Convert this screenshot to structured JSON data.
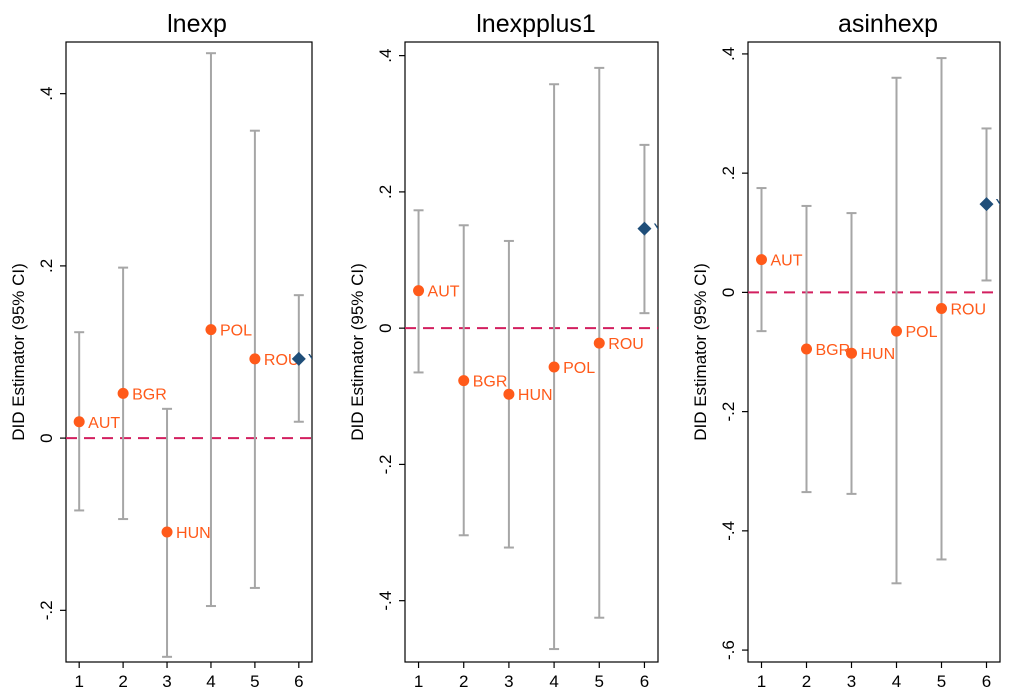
{
  "colors": {
    "ci": "#a6a6a6",
    "point": "#ff5a1a",
    "highlight": "#1f4e79",
    "zero_line": "#d21f5f",
    "axis": "#000000"
  },
  "chart_data": [
    {
      "type": "scatter",
      "title": "lnexp",
      "ylabel": "DID Estimator (95% CI)",
      "xlim": [
        0.7,
        6.3
      ],
      "ylim": [
        -0.26,
        0.46
      ],
      "xticks": [
        1,
        2,
        3,
        4,
        5,
        6
      ],
      "yticks": [
        -0.2,
        0,
        0.2,
        0.4
      ],
      "ytick_labels": [
        "-.2",
        "0",
        ".2",
        ".4"
      ],
      "reference_line": 0,
      "grid": false,
      "points": [
        {
          "x": 1,
          "label": "AUT",
          "estimate": 0.019,
          "ci_low": -0.084,
          "ci_high": 0.123,
          "highlight": false
        },
        {
          "x": 2,
          "label": "BGR",
          "estimate": 0.052,
          "ci_low": -0.094,
          "ci_high": 0.198,
          "highlight": false
        },
        {
          "x": 3,
          "label": "HUN",
          "estimate": -0.109,
          "ci_low": -0.254,
          "ci_high": 0.034,
          "highlight": false
        },
        {
          "x": 4,
          "label": "POL",
          "estimate": 0.126,
          "ci_low": -0.195,
          "ci_high": 0.447,
          "highlight": false
        },
        {
          "x": 5,
          "label": "ROU",
          "estimate": 0.092,
          "ci_low": -0.174,
          "ci_high": 0.357,
          "highlight": false
        },
        {
          "x": 6,
          "label": "YUG",
          "estimate": 0.092,
          "ci_low": 0.019,
          "ci_high": 0.166,
          "highlight": true
        }
      ]
    },
    {
      "type": "scatter",
      "title": "lnexpplus1",
      "ylabel": "DID Estimator (95% CI)",
      "xlim": [
        0.7,
        6.3
      ],
      "ylim": [
        -0.49,
        0.42
      ],
      "xticks": [
        1,
        2,
        3,
        4,
        5,
        6
      ],
      "yticks": [
        -0.4,
        -0.2,
        0,
        0.2,
        0.4
      ],
      "ytick_labels": [
        "-.4",
        "-.2",
        "0",
        ".2",
        ".4"
      ],
      "reference_line": 0,
      "grid": false,
      "points": [
        {
          "x": 1,
          "label": "AUT",
          "estimate": 0.055,
          "ci_low": -0.065,
          "ci_high": 0.173,
          "highlight": false
        },
        {
          "x": 2,
          "label": "BGR",
          "estimate": -0.077,
          "ci_low": -0.304,
          "ci_high": 0.151,
          "highlight": false
        },
        {
          "x": 3,
          "label": "HUN",
          "estimate": -0.097,
          "ci_low": -0.322,
          "ci_high": 0.128,
          "highlight": false
        },
        {
          "x": 4,
          "label": "POL",
          "estimate": -0.057,
          "ci_low": -0.471,
          "ci_high": 0.358,
          "highlight": false
        },
        {
          "x": 5,
          "label": "ROU",
          "estimate": -0.022,
          "ci_low": -0.425,
          "ci_high": 0.382,
          "highlight": false
        },
        {
          "x": 6,
          "label": "YUG",
          "estimate": 0.146,
          "ci_low": 0.022,
          "ci_high": 0.269,
          "highlight": true
        }
      ]
    },
    {
      "type": "scatter",
      "title": "asinhexp",
      "ylabel": "DID Estimator (95% CI)",
      "xlim": [
        0.7,
        6.3
      ],
      "ylim": [
        -0.62,
        0.42
      ],
      "xticks": [
        1,
        2,
        3,
        4,
        5,
        6
      ],
      "yticks": [
        -0.6,
        -0.4,
        -0.2,
        0,
        0.2,
        0.4
      ],
      "ytick_labels": [
        "-.6",
        "-.4",
        "-.2",
        "0",
        ".2",
        ".4"
      ],
      "reference_line": 0,
      "grid": false,
      "points": [
        {
          "x": 1,
          "label": "AUT",
          "estimate": 0.055,
          "ci_low": -0.065,
          "ci_high": 0.175,
          "highlight": false
        },
        {
          "x": 2,
          "label": "BGR",
          "estimate": -0.095,
          "ci_low": -0.335,
          "ci_high": 0.145,
          "highlight": false
        },
        {
          "x": 3,
          "label": "HUN",
          "estimate": -0.102,
          "ci_low": -0.338,
          "ci_high": 0.133,
          "highlight": false
        },
        {
          "x": 4,
          "label": "POL",
          "estimate": -0.065,
          "ci_low": -0.488,
          "ci_high": 0.36,
          "highlight": false
        },
        {
          "x": 5,
          "label": "ROU",
          "estimate": -0.027,
          "ci_low": -0.448,
          "ci_high": 0.393,
          "highlight": false
        },
        {
          "x": 6,
          "label": "YUG",
          "estimate": 0.148,
          "ci_low": 0.02,
          "ci_high": 0.275,
          "highlight": true
        }
      ]
    }
  ]
}
